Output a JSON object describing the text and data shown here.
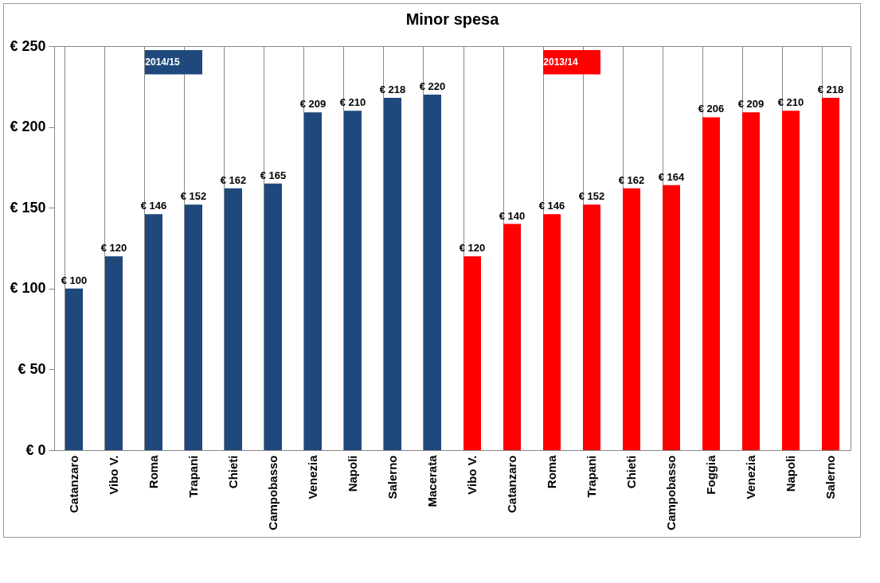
{
  "chart_data": {
    "type": "bar",
    "title": "Minor spesa",
    "categories": [
      "Catanzaro",
      "Vibo V.",
      "Roma",
      "Trapani",
      "Chieti",
      "Campobasso",
      "Venezia",
      "Napoli",
      "Salerno",
      "Macerata",
      "Vibo V.",
      "Catanzaro",
      "Roma",
      "Trapani",
      "Chieti",
      "Campobasso",
      "Foggia",
      "Venezia",
      "Napoli",
      "Salerno"
    ],
    "series": [
      {
        "name": "2014/15",
        "color": "#1f497d",
        "values": [
          100,
          120,
          146,
          152,
          162,
          165,
          209,
          210,
          218,
          220,
          null,
          null,
          null,
          null,
          null,
          null,
          null,
          null,
          null,
          null
        ],
        "value_labels": [
          "€ 100",
          "€ 120",
          "€ 146",
          "€ 152",
          "€ 162",
          "€ 165",
          "€ 209",
          "€ 210",
          "€ 218",
          "€ 220",
          null,
          null,
          null,
          null,
          null,
          null,
          null,
          null,
          null,
          null
        ]
      },
      {
        "name": "2013/14",
        "color": "#ff0000",
        "values": [
          null,
          null,
          null,
          null,
          null,
          null,
          null,
          null,
          null,
          null,
          120,
          140,
          146,
          152,
          162,
          164,
          206,
          209,
          210,
          218
        ],
        "value_labels": [
          null,
          null,
          null,
          null,
          null,
          null,
          null,
          null,
          null,
          null,
          "€ 120",
          "€ 140",
          "€ 146",
          "€ 152",
          "€ 162",
          "€ 164",
          "€ 206",
          "€ 209",
          "€ 210",
          "€ 218"
        ]
      }
    ],
    "ylim": [
      0,
      250
    ],
    "yticks": [
      {
        "value": 0,
        "label": "€ 0"
      },
      {
        "value": 50,
        "label": "€ 50"
      },
      {
        "value": 100,
        "label": "€ 100"
      },
      {
        "value": 150,
        "label": "€ 150"
      },
      {
        "value": 200,
        "label": "€ 200"
      },
      {
        "value": 250,
        "label": "€ 250"
      }
    ],
    "grid": "x",
    "legend": false
  }
}
